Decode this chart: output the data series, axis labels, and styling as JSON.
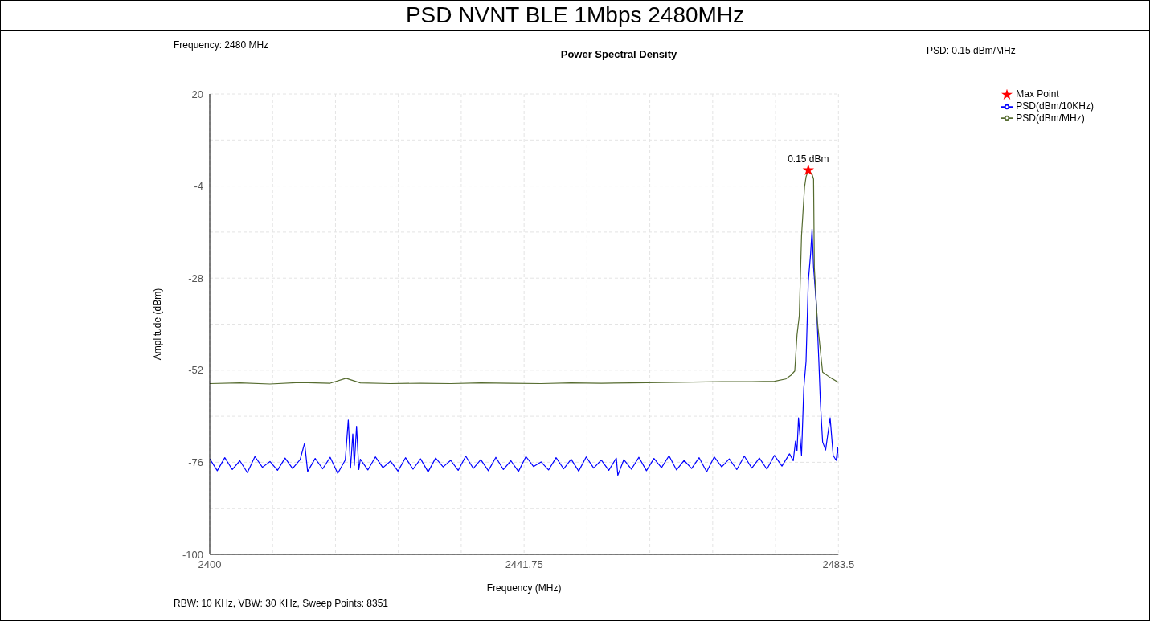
{
  "chart_data": {
    "type": "line",
    "title": "PSD NVNT BLE 1Mbps 2480MHz",
    "subtitle": "Power Spectral Density",
    "xlabel": "Frequency (MHz)",
    "ylabel": "Amplitude (dBm)",
    "annotations": [
      "Frequency: 2480 MHz",
      "PSD: 0.15 dBm/MHz",
      "RBW: 10 KHz,  VBW: 30 KHz,  Sweep Points: 8351",
      {
        "text": "0.15 dBm",
        "x": 2479.5,
        "y": 0.15
      }
    ],
    "xlim": [
      2400,
      2483.5
    ],
    "xticks": [
      2400,
      {
        "value": 2408.35,
        "label": null
      },
      {
        "value": 2416.7,
        "label": null
      },
      {
        "value": 2425.05,
        "label": null
      },
      {
        "value": 2433.4,
        "label": null
      },
      2441.75,
      {
        "value": 2450.1,
        "label": null
      },
      {
        "value": 2458.45,
        "label": null
      },
      {
        "value": 2466.8,
        "label": null
      },
      {
        "value": 2475.15,
        "label": null
      },
      2483.5
    ],
    "ylim": [
      -100,
      20
    ],
    "yticks": [
      -100,
      {
        "value": -88,
        "label": null
      },
      -76,
      {
        "value": -64,
        "label": null
      },
      -52,
      {
        "value": -40,
        "label": null
      },
      -28,
      {
        "value": -16,
        "label": null
      },
      -4,
      {
        "value": 8,
        "label": null
      },
      20
    ],
    "grid": true,
    "legend": "top right",
    "marker": "none",
    "line_style": "solid",
    "series": [
      {
        "name": "PSD(dBm/10KHz)",
        "color": "#0000ff",
        "x": [
          2400,
          2401,
          2402,
          2403,
          2404,
          2405,
          2406,
          2407,
          2408,
          2409,
          2410,
          2411,
          2412,
          2412.6,
          2413,
          2414,
          2415,
          2416,
          2417,
          2418,
          2418.4,
          2418.7,
          2419,
          2419.2,
          2419.5,
          2419.8,
          2420,
          2421,
          2422,
          2423,
          2424,
          2425,
          2426,
          2427,
          2428,
          2429,
          2430,
          2431,
          2432,
          2433,
          2434,
          2435,
          2436,
          2437,
          2438,
          2439,
          2440,
          2441,
          2442,
          2443,
          2444,
          2445,
          2446,
          2447,
          2448,
          2449,
          2450,
          2451,
          2452,
          2453,
          2454,
          2454.2,
          2455,
          2456,
          2457,
          2458,
          2459,
          2460,
          2461,
          2462,
          2463,
          2464,
          2465,
          2466,
          2467,
          2468,
          2469,
          2470,
          2471,
          2472,
          2473,
          2474,
          2475,
          2476,
          2477,
          2477.5,
          2477.8,
          2478.0,
          2478.2,
          2478.6,
          2478.9,
          2479.2,
          2479.5,
          2479.8,
          2480.0,
          2480.2,
          2480.6,
          2480.9,
          2481.1,
          2481.4,
          2481.8,
          2482.4,
          2482.8,
          2483.2,
          2483.4,
          2483.5
        ],
        "values": [
          -75.1,
          -78.2,
          -74.8,
          -77.9,
          -75.6,
          -78.7,
          -74.5,
          -77.3,
          -75.8,
          -78.1,
          -74.9,
          -77.6,
          -75.3,
          -71.0,
          -78.4,
          -75.0,
          -77.7,
          -74.7,
          -78.9,
          -75.4,
          -65.0,
          -77.5,
          -68.6,
          -76.8,
          -66.6,
          -77.9,
          -75.2,
          -78.0,
          -74.6,
          -77.4,
          -75.7,
          -78.3,
          -74.8,
          -77.8,
          -75.1,
          -78.5,
          -74.9,
          -77.2,
          -75.5,
          -78.1,
          -74.4,
          -77.6,
          -75.3,
          -78.2,
          -74.7,
          -77.9,
          -75.6,
          -78.4,
          -74.5,
          -77.1,
          -75.9,
          -78.0,
          -74.8,
          -77.7,
          -75.2,
          -78.3,
          -74.6,
          -77.5,
          -75.4,
          -78.1,
          -74.9,
          -79.4,
          -75.3,
          -77.8,
          -74.7,
          -78.2,
          -75.0,
          -77.4,
          -74.3,
          -78.0,
          -75.5,
          -77.6,
          -74.8,
          -78.5,
          -74.6,
          -77.2,
          -75.1,
          -77.9,
          -74.4,
          -77.5,
          -74.9,
          -77.8,
          -74.2,
          -77.0,
          -73.8,
          -75.6,
          -70.5,
          -73.0,
          -64.4,
          -74.2,
          -56.7,
          -49.7,
          -28.8,
          -21.8,
          -15.2,
          -25.2,
          -35.7,
          -49.7,
          -60.2,
          -70.7,
          -72.8,
          -64.4,
          -74.2,
          -75.5,
          -72.1,
          -74.9
        ]
      },
      {
        "name": "PSD(dBm/MHz)",
        "color": "#556b2f",
        "x": [
          2400,
          2404,
          2408,
          2412,
          2416,
          2418.1,
          2420,
          2424,
          2428,
          2432,
          2436,
          2440,
          2444,
          2448,
          2452,
          2456,
          2460,
          2464,
          2468,
          2472,
          2475,
          2476.5,
          2477.2,
          2477.7,
          2478.0,
          2478.3,
          2478.6,
          2479.0,
          2479.2,
          2479.5,
          2480.0,
          2480.2,
          2480.3,
          2480.7,
          2481.4,
          2482.4,
          2483.5
        ],
        "values": [
          -55.5,
          -55.3,
          -55.6,
          -55.2,
          -55.4,
          -54.1,
          -55.3,
          -55.5,
          -55.4,
          -55.5,
          -55.3,
          -55.4,
          -55.5,
          -55.3,
          -55.4,
          -55.3,
          -55.2,
          -55.1,
          -55.0,
          -55.0,
          -54.9,
          -54.3,
          -53.3,
          -52.2,
          -42.8,
          -37.8,
          -16.9,
          -4.3,
          -1.6,
          0.15,
          -0.9,
          -2.2,
          -25.2,
          -39.3,
          -52.5,
          -53.9,
          -55.2
        ]
      },
      {
        "name": "Max Point",
        "type": "scatter",
        "marker": "star",
        "color": "#ff0000",
        "x": [
          2479.5
        ],
        "values": [
          0.15
        ]
      }
    ]
  }
}
